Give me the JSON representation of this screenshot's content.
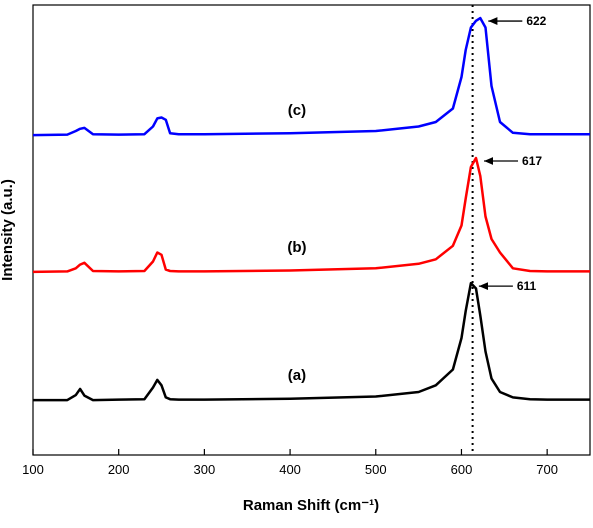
{
  "chart_data": {
    "type": "line",
    "xlabel": "Raman Shift (cm⁻¹)",
    "ylabel": "Intensity (a.u.)",
    "xlim": [
      100,
      750
    ],
    "xticks": [
      100,
      200,
      300,
      400,
      500,
      600,
      700
    ],
    "ylim": [
      0,
      100
    ],
    "reference_x": 613,
    "x": [
      100,
      140,
      150,
      155,
      160,
      170,
      200,
      230,
      240,
      245,
      250,
      255,
      260,
      270,
      300,
      400,
      500,
      550,
      570,
      590,
      600,
      605,
      611,
      617,
      622,
      628,
      635,
      645,
      660,
      680,
      700,
      750
    ],
    "series": [
      {
        "name": "(a)",
        "color": "#000000",
        "peak": 611,
        "values": [
          12.2,
          12.2,
          13.3,
          14.7,
          13.2,
          12.2,
          12.3,
          12.4,
          15,
          16.7,
          15.5,
          12.8,
          12.4,
          12.3,
          12.3,
          12.5,
          13,
          14,
          15.5,
          19,
          26,
          32,
          38.2,
          37,
          31,
          23,
          17,
          14,
          12.8,
          12.4,
          12.3,
          12.3
        ]
      },
      {
        "name": "(b)",
        "color": "#ff0000",
        "peak": 617,
        "values": [
          40.7,
          40.8,
          41.5,
          42.3,
          42.7,
          40.9,
          40.8,
          40.9,
          43,
          45,
          44.5,
          41.2,
          40.9,
          40.8,
          40.8,
          41,
          41.5,
          42.5,
          43.5,
          46.5,
          51,
          57,
          64,
          66,
          62,
          53,
          48,
          45,
          41.5,
          40.9,
          40.8,
          40.8
        ]
      },
      {
        "name": "(c)",
        "color": "#0000ff",
        "peak": 622,
        "values": [
          71.1,
          71.2,
          72,
          72.5,
          72.7,
          71.3,
          71.2,
          71.3,
          73,
          74.8,
          75,
          74.5,
          71.5,
          71.3,
          71.3,
          71.5,
          72,
          73,
          74,
          77,
          84,
          90,
          95,
          96.5,
          97.1,
          95,
          82,
          74,
          71.6,
          71.3,
          71.3,
          71.3
        ]
      }
    ]
  }
}
